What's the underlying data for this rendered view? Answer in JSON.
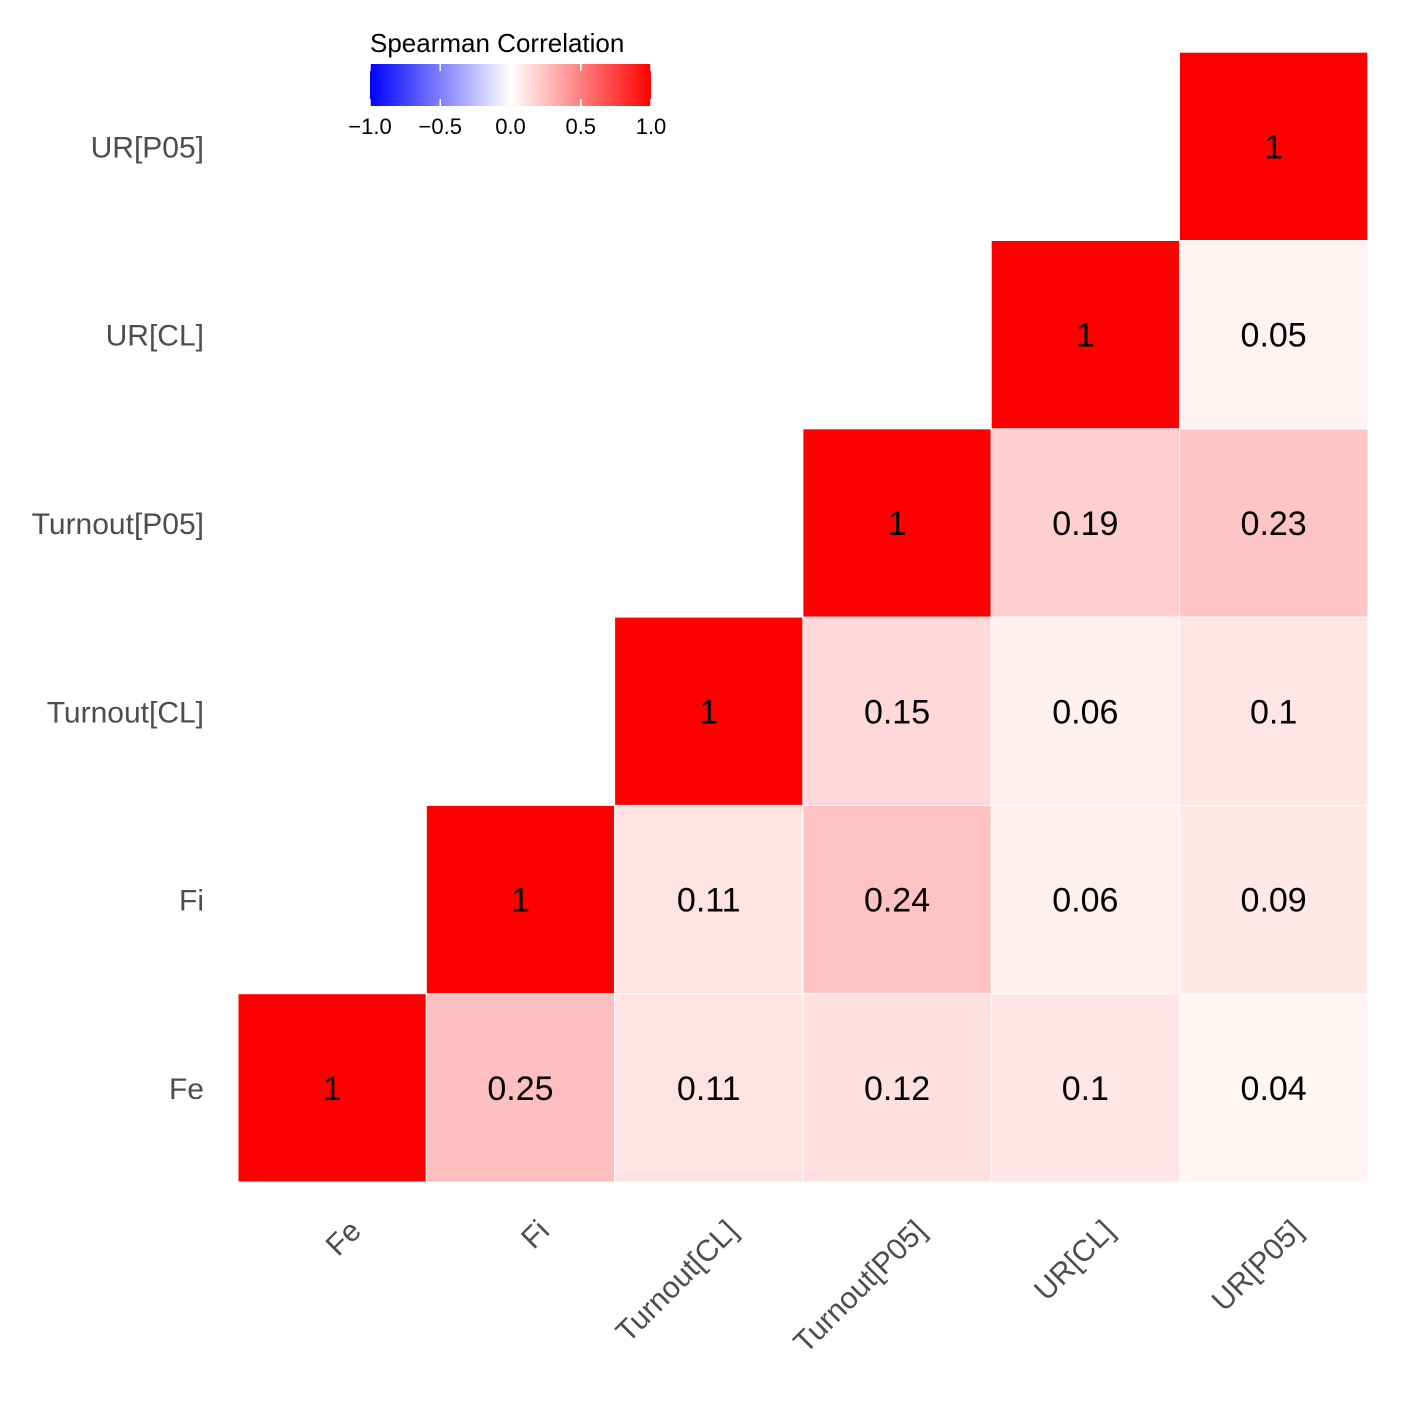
{
  "chart_data": {
    "type": "heatmap",
    "legend": {
      "title": "Spearman Correlation",
      "ticks": [
        "−1.0",
        "−0.5",
        "0.0",
        "0.5",
        "1.0"
      ],
      "tick_values": [
        -1.0,
        -0.5,
        0.0,
        0.5,
        1.0
      ],
      "range": [
        -1,
        1
      ],
      "placement": "top"
    },
    "colors": {
      "low": "#0000ff",
      "mid": "#ffffff",
      "high": "#ff0000"
    },
    "grid": false,
    "x_labels": [
      "Fe",
      "Fi",
      "Turnout[CL]",
      "Turnout[P05]",
      "UR[CL]",
      "UR[P05]"
    ],
    "y_labels": [
      "Fe",
      "Fi",
      "Turnout[CL]",
      "Turnout[P05]",
      "UR[CL]",
      "UR[P05]"
    ],
    "cells": [
      {
        "x": "Fe",
        "y": "Fe",
        "value": 1,
        "label": "1"
      },
      {
        "x": "Fi",
        "y": "Fe",
        "value": 0.25,
        "label": "0.25"
      },
      {
        "x": "Turnout[CL]",
        "y": "Fe",
        "value": 0.11,
        "label": "0.11"
      },
      {
        "x": "Turnout[P05]",
        "y": "Fe",
        "value": 0.12,
        "label": "0.12"
      },
      {
        "x": "UR[CL]",
        "y": "Fe",
        "value": 0.1,
        "label": "0.1"
      },
      {
        "x": "UR[P05]",
        "y": "Fe",
        "value": 0.04,
        "label": "0.04"
      },
      {
        "x": "Fi",
        "y": "Fi",
        "value": 1,
        "label": "1"
      },
      {
        "x": "Turnout[CL]",
        "y": "Fi",
        "value": 0.11,
        "label": "0.11"
      },
      {
        "x": "Turnout[P05]",
        "y": "Fi",
        "value": 0.24,
        "label": "0.24"
      },
      {
        "x": "UR[CL]",
        "y": "Fi",
        "value": 0.06,
        "label": "0.06"
      },
      {
        "x": "UR[P05]",
        "y": "Fi",
        "value": 0.09,
        "label": "0.09"
      },
      {
        "x": "Turnout[CL]",
        "y": "Turnout[CL]",
        "value": 1,
        "label": "1"
      },
      {
        "x": "Turnout[P05]",
        "y": "Turnout[CL]",
        "value": 0.15,
        "label": "0.15"
      },
      {
        "x": "UR[CL]",
        "y": "Turnout[CL]",
        "value": 0.06,
        "label": "0.06"
      },
      {
        "x": "UR[P05]",
        "y": "Turnout[CL]",
        "value": 0.1,
        "label": "0.1"
      },
      {
        "x": "Turnout[P05]",
        "y": "Turnout[P05]",
        "value": 1,
        "label": "1"
      },
      {
        "x": "UR[CL]",
        "y": "Turnout[P05]",
        "value": 0.19,
        "label": "0.19"
      },
      {
        "x": "UR[P05]",
        "y": "Turnout[P05]",
        "value": 0.23,
        "label": "0.23"
      },
      {
        "x": "UR[CL]",
        "y": "UR[CL]",
        "value": 1,
        "label": "1"
      },
      {
        "x": "UR[P05]",
        "y": "UR[CL]",
        "value": 0.05,
        "label": "0.05"
      },
      {
        "x": "UR[P05]",
        "y": "UR[P05]",
        "value": 1,
        "label": "1"
      }
    ]
  }
}
